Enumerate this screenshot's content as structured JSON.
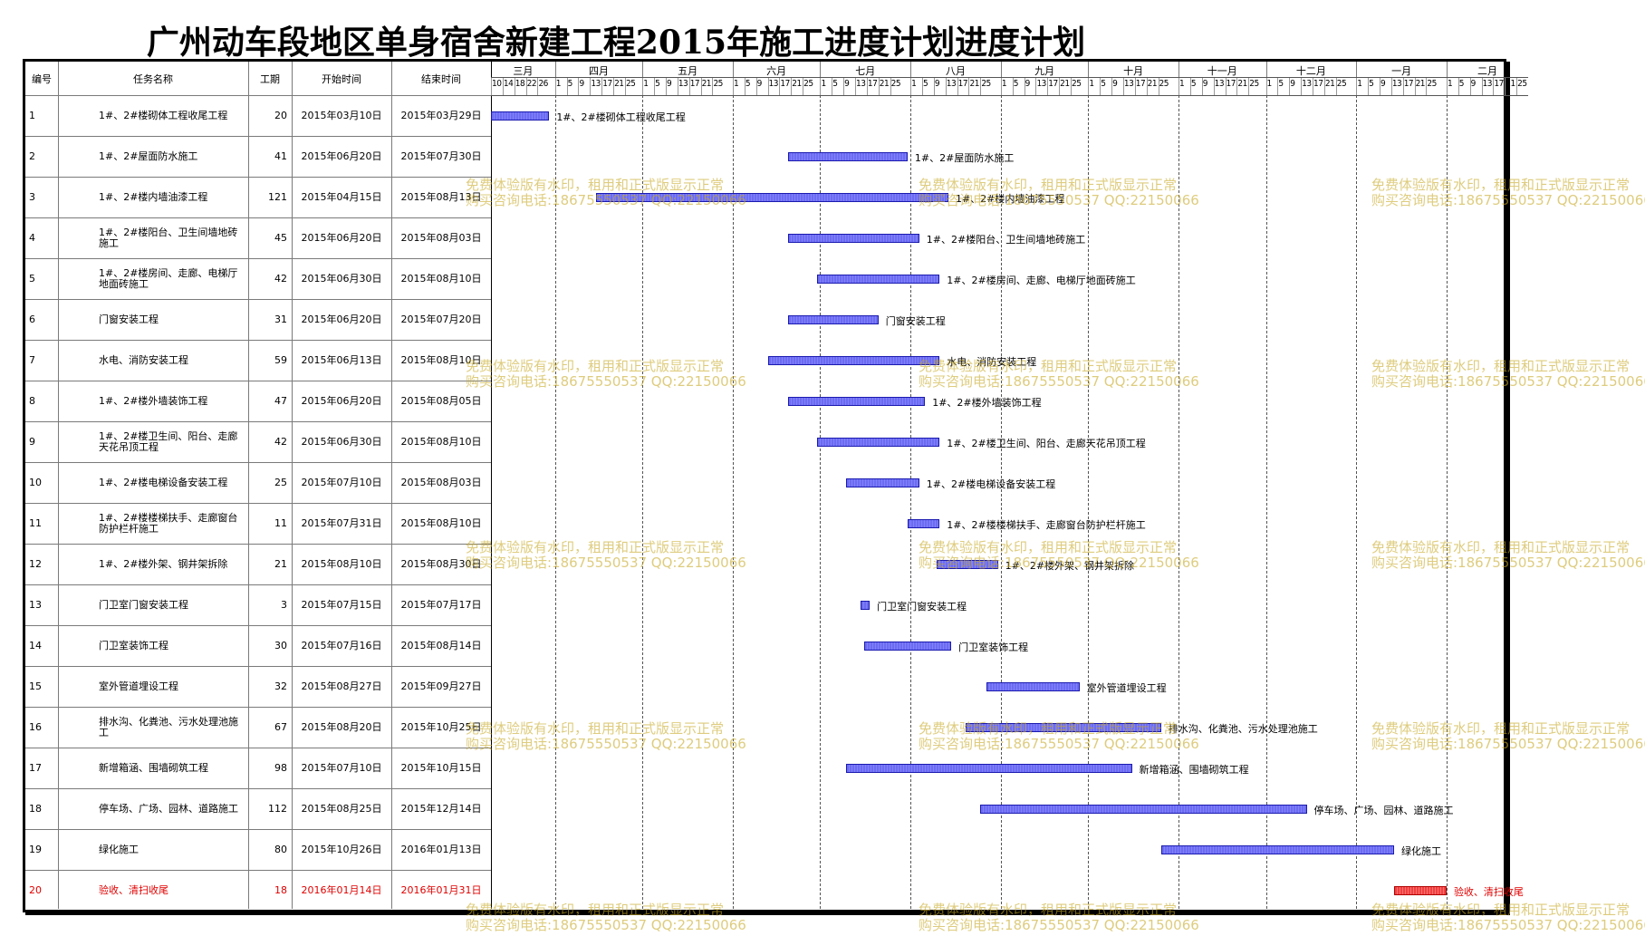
{
  "title": "广州动车段地区单身宿舍新建工程2015年施工进度计划进度计划",
  "table": {
    "headers": {
      "id": "编号",
      "name": "任务名称",
      "duration": "工期",
      "start": "开始时间",
      "end": "结束时间"
    }
  },
  "timeline": {
    "months": [
      {
        "label": "三月",
        "days": [
          "10",
          "14",
          "18",
          "22",
          "26"
        ]
      },
      {
        "label": "四月",
        "days": [
          "1",
          "5",
          "9",
          "13",
          "17",
          "21",
          "25"
        ]
      },
      {
        "label": "五月",
        "days": [
          "1",
          "5",
          "9",
          "13",
          "17",
          "21",
          "25"
        ]
      },
      {
        "label": "六月",
        "days": [
          "1",
          "5",
          "9",
          "13",
          "17",
          "21",
          "25"
        ]
      },
      {
        "label": "七月",
        "days": [
          "1",
          "5",
          "9",
          "13",
          "17",
          "21",
          "25"
        ]
      },
      {
        "label": "八月",
        "days": [
          "1",
          "5",
          "9",
          "13",
          "17",
          "21",
          "25"
        ]
      },
      {
        "label": "九月",
        "days": [
          "1",
          "5",
          "9",
          "13",
          "17",
          "21",
          "25"
        ]
      },
      {
        "label": "十月",
        "days": [
          "1",
          "5",
          "9",
          "13",
          "17",
          "21",
          "25"
        ]
      },
      {
        "label": "十一月",
        "days": [
          "1",
          "5",
          "9",
          "13",
          "17",
          "21",
          "25"
        ]
      },
      {
        "label": "十二月",
        "days": [
          "1",
          "5",
          "9",
          "13",
          "17",
          "21",
          "25"
        ]
      },
      {
        "label": "一月",
        "days": [
          "1",
          "5",
          "9",
          "13",
          "17",
          "21",
          "25"
        ]
      },
      {
        "label": "二月",
        "days": [
          "1",
          "5",
          "9",
          "13",
          "17",
          "21",
          "25"
        ]
      }
    ]
  },
  "chart_data": {
    "type": "gantt",
    "x_range": [
      "2015-03-10",
      "2016-02-28"
    ],
    "bar_color": "#6c6cf0",
    "highlight_color": "#f04040",
    "tasks": [
      {
        "id": "1",
        "name": "1#、2#楼砌体工程收尾工程",
        "duration": 20,
        "start": "2015年03月10日",
        "end": "2015年03月29日",
        "start_date": "2015-03-10",
        "end_date": "2015-03-29",
        "bar_label": "1#、2#楼砌体工程收尾工程"
      },
      {
        "id": "2",
        "name": "1#、2#屋面防水施工",
        "duration": 41,
        "start": "2015年06月20日",
        "end": "2015年07月30日",
        "start_date": "2015-06-20",
        "end_date": "2015-07-30",
        "bar_label": "1#、2#屋面防水施工"
      },
      {
        "id": "3",
        "name": "1#、2#楼内墙油漆工程",
        "duration": 121,
        "start": "2015年04月15日",
        "end": "2015年08月13日",
        "start_date": "2015-04-15",
        "end_date": "2015-08-13",
        "bar_label": "1#、2#楼内墙油漆工程"
      },
      {
        "id": "4",
        "name": "1#、2#楼阳台、卫生间墙地砖施工",
        "duration": 45,
        "start": "2015年06月20日",
        "end": "2015年08月03日",
        "start_date": "2015-06-20",
        "end_date": "2015-08-03",
        "bar_label": "1#、2#楼阳台、卫生间墙地砖施工"
      },
      {
        "id": "5",
        "name": "1#、2#楼房间、走廊、电梯厅地面砖施工",
        "duration": 42,
        "start": "2015年06月30日",
        "end": "2015年08月10日",
        "start_date": "2015-06-30",
        "end_date": "2015-08-10",
        "bar_label": "1#、2#楼房间、走廊、电梯厅地面砖施工"
      },
      {
        "id": "6",
        "name": "门窗安装工程",
        "duration": 31,
        "start": "2015年06月20日",
        "end": "2015年07月20日",
        "start_date": "2015-06-20",
        "end_date": "2015-07-20",
        "bar_label": "门窗安装工程"
      },
      {
        "id": "7",
        "name": "水电、消防安装工程",
        "duration": 59,
        "start": "2015年06月13日",
        "end": "2015年08月10日",
        "start_date": "2015-06-13",
        "end_date": "2015-08-10",
        "bar_label": "水电、消防安装工程"
      },
      {
        "id": "8",
        "name": "1#、2#楼外墙装饰工程",
        "duration": 47,
        "start": "2015年06月20日",
        "end": "2015年08月05日",
        "start_date": "2015-06-20",
        "end_date": "2015-08-05",
        "bar_label": "1#、2#楼外墙装饰工程"
      },
      {
        "id": "9",
        "name": "1#、2#楼卫生间、阳台、走廊天花吊顶工程",
        "duration": 42,
        "start": "2015年06月30日",
        "end": "2015年08月10日",
        "start_date": "2015-06-30",
        "end_date": "2015-08-10",
        "bar_label": "1#、2#楼卫生间、阳台、走廊天花吊顶工程"
      },
      {
        "id": "10",
        "name": "1#、2#楼电梯设备安装工程",
        "duration": 25,
        "start": "2015年07月10日",
        "end": "2015年08月03日",
        "start_date": "2015-07-10",
        "end_date": "2015-08-03",
        "bar_label": "1#、2#楼电梯设备安装工程"
      },
      {
        "id": "11",
        "name": "1#、2#楼楼梯扶手、走廊窗台防护栏杆施工",
        "duration": 11,
        "start": "2015年07月31日",
        "end": "2015年08月10日",
        "start_date": "2015-07-31",
        "end_date": "2015-08-10",
        "bar_label": "1#、2#楼楼梯扶手、走廊窗台防护栏杆施工"
      },
      {
        "id": "12",
        "name": "1#、2#楼外架、钢井架拆除",
        "duration": 21,
        "start": "2015年08月10日",
        "end": "2015年08月30日",
        "start_date": "2015-08-10",
        "end_date": "2015-08-30",
        "bar_label": "1#、2#楼外架、钢井架拆除"
      },
      {
        "id": "13",
        "name": "门卫室门窗安装工程",
        "duration": 3,
        "start": "2015年07月15日",
        "end": "2015年07月17日",
        "start_date": "2015-07-15",
        "end_date": "2015-07-17",
        "bar_label": "门卫室门窗安装工程"
      },
      {
        "id": "14",
        "name": "门卫室装饰工程",
        "duration": 30,
        "start": "2015年07月16日",
        "end": "2015年08月14日",
        "start_date": "2015-07-16",
        "end_date": "2015-08-14",
        "bar_label": "门卫室装饰工程"
      },
      {
        "id": "15",
        "name": "室外管道埋设工程",
        "duration": 32,
        "start": "2015年08月27日",
        "end": "2015年09月27日",
        "start_date": "2015-08-27",
        "end_date": "2015-09-27",
        "bar_label": "室外管道埋设工程"
      },
      {
        "id": "16",
        "name": "排水沟、化粪池、污水处理池施工",
        "duration": 67,
        "start": "2015年08月20日",
        "end": "2015年10月25日",
        "start_date": "2015-08-20",
        "end_date": "2015-10-25",
        "bar_label": "排水沟、化粪池、污水处理池施工"
      },
      {
        "id": "17",
        "name": "新增箱涵、围墙砌筑工程",
        "duration": 98,
        "start": "2015年07月10日",
        "end": "2015年10月15日",
        "start_date": "2015-07-10",
        "end_date": "2015-10-15",
        "bar_label": "新增箱涵、围墙砌筑工程"
      },
      {
        "id": "18",
        "name": "停车场、广场、园林、道路施工",
        "duration": 112,
        "start": "2015年08月25日",
        "end": "2015年12月14日",
        "start_date": "2015-08-25",
        "end_date": "2015-12-14",
        "bar_label": "停车场、广场、园林、道路施工"
      },
      {
        "id": "19",
        "name": "绿化施工",
        "duration": 80,
        "start": "2015年10月26日",
        "end": "2016年01月13日",
        "start_date": "2015-10-26",
        "end_date": "2016-01-13",
        "bar_label": "绿化施工"
      },
      {
        "id": "20",
        "name": "验收、清扫收尾",
        "duration": 18,
        "start": "2016年01月14日",
        "end": "2016年01月31日",
        "start_date": "2016-01-14",
        "end_date": "2016-01-31",
        "bar_label": "验收、清扫收尾",
        "highlight": true
      }
    ]
  },
  "watermark": {
    "line1": "免费体验版有水印，租用和正式版显示正常",
    "line2": "购买咨询电话:18675550537 QQ:22150066"
  }
}
